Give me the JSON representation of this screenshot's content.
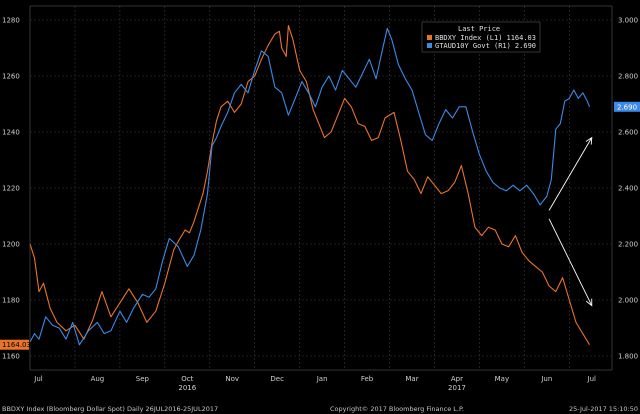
{
  "chart_data": {
    "type": "line",
    "legend": {
      "title": "Last Price",
      "placement": "top-right",
      "entries": [
        {
          "label": "BBDXY Index  (L1)",
          "value": "1164.03",
          "color": "#e8742a"
        },
        {
          "label": "GTAUD10Y Govt  (R1)",
          "value": "2.690",
          "color": "#3c8ae6"
        }
      ]
    },
    "y_left": {
      "ticks": [
        "1280",
        "1260",
        "1240",
        "1220",
        "1200",
        "1180",
        "1160"
      ],
      "range": [
        1155,
        1285
      ],
      "last_label": "1164.03",
      "last_value": 1164.03,
      "last_color": "#e8742a"
    },
    "y_right": {
      "ticks": [
        "3.000",
        "2.800",
        "2.600",
        "2.400",
        "2.200",
        "2.000",
        "1.800"
      ],
      "range": [
        1.75,
        3.05
      ],
      "last_label": "2.690",
      "last_value": 2.69,
      "last_color": "#3c8ae6"
    },
    "x_labels": [
      {
        "label": "Jul",
        "m": 0.1
      },
      {
        "label": "Aug",
        "m": 1
      },
      {
        "label": "Sep",
        "m": 2
      },
      {
        "label": "Oct",
        "m": 3
      },
      {
        "label": "Nov",
        "m": 4
      },
      {
        "label": "Dec",
        "m": 5
      },
      {
        "label": "Jan",
        "m": 6
      },
      {
        "label": "Feb",
        "m": 7
      },
      {
        "label": "Mar",
        "m": 8
      },
      {
        "label": "Apr",
        "m": 9
      },
      {
        "label": "May",
        "m": 10
      },
      {
        "label": "Jun",
        "m": 11
      },
      {
        "label": "Jul",
        "m": 12
      }
    ],
    "x_year_labels": [
      {
        "label": "2016",
        "m": 3
      },
      {
        "label": "2017",
        "m": 9
      }
    ],
    "x_range_months": [
      0,
      12.95
    ],
    "grid": true,
    "series": [
      {
        "name": "BBDXY Index",
        "axis": "left",
        "color": "#e8742a",
        "points": [
          [
            0,
            1200
          ],
          [
            0.1,
            1195
          ],
          [
            0.2,
            1183
          ],
          [
            0.3,
            1186
          ],
          [
            0.45,
            1177
          ],
          [
            0.6,
            1172
          ],
          [
            0.8,
            1169
          ],
          [
            1,
            1171
          ],
          [
            1.2,
            1166
          ],
          [
            1.4,
            1173
          ],
          [
            1.6,
            1183
          ],
          [
            1.8,
            1174
          ],
          [
            2,
            1179
          ],
          [
            2.2,
            1184
          ],
          [
            2.4,
            1179
          ],
          [
            2.6,
            1172
          ],
          [
            2.8,
            1176
          ],
          [
            3,
            1186
          ],
          [
            3.1,
            1192
          ],
          [
            3.2,
            1198
          ],
          [
            3.3,
            1201
          ],
          [
            3.45,
            1205
          ],
          [
            3.55,
            1204
          ],
          [
            3.65,
            1208
          ],
          [
            3.75,
            1213
          ],
          [
            3.85,
            1218
          ],
          [
            3.95,
            1226
          ],
          [
            4.05,
            1236
          ],
          [
            4.15,
            1244
          ],
          [
            4.25,
            1249
          ],
          [
            4.4,
            1251
          ],
          [
            4.55,
            1247
          ],
          [
            4.7,
            1250
          ],
          [
            4.85,
            1258
          ],
          [
            5,
            1260
          ],
          [
            5.15,
            1266
          ],
          [
            5.3,
            1271
          ],
          [
            5.45,
            1275
          ],
          [
            5.55,
            1276
          ],
          [
            5.6,
            1270
          ],
          [
            5.7,
            1267
          ],
          [
            5.75,
            1278
          ],
          [
            5.85,
            1273
          ],
          [
            6,
            1262
          ],
          [
            6.15,
            1258
          ],
          [
            6.3,
            1248
          ],
          [
            6.45,
            1242
          ],
          [
            6.55,
            1238
          ],
          [
            6.7,
            1240
          ],
          [
            6.85,
            1246
          ],
          [
            7,
            1252
          ],
          [
            7.15,
            1249
          ],
          [
            7.3,
            1243
          ],
          [
            7.45,
            1242
          ],
          [
            7.6,
            1237
          ],
          [
            7.75,
            1238
          ],
          [
            7.9,
            1245
          ],
          [
            8.1,
            1247
          ],
          [
            8.25,
            1237
          ],
          [
            8.4,
            1226
          ],
          [
            8.55,
            1223
          ],
          [
            8.7,
            1218
          ],
          [
            8.85,
            1224
          ],
          [
            9,
            1221
          ],
          [
            9.15,
            1218
          ],
          [
            9.3,
            1219
          ],
          [
            9.45,
            1222
          ],
          [
            9.6,
            1228
          ],
          [
            9.75,
            1218
          ],
          [
            9.9,
            1206
          ],
          [
            10.05,
            1203
          ],
          [
            10.2,
            1206
          ],
          [
            10.35,
            1205
          ],
          [
            10.5,
            1200
          ],
          [
            10.65,
            1199
          ],
          [
            10.8,
            1203
          ],
          [
            10.95,
            1197
          ],
          [
            11.1,
            1194
          ],
          [
            11.25,
            1192
          ],
          [
            11.4,
            1190
          ],
          [
            11.55,
            1185
          ],
          [
            11.7,
            1183
          ],
          [
            11.85,
            1188
          ],
          [
            12,
            1180
          ],
          [
            12.15,
            1172
          ],
          [
            12.3,
            1168
          ],
          [
            12.45,
            1164.03
          ]
        ]
      },
      {
        "name": "GTAUD10Y Govt",
        "axis": "right",
        "color": "#3c8ae6",
        "points": [
          [
            0,
            1.85
          ],
          [
            0.1,
            1.88
          ],
          [
            0.2,
            1.86
          ],
          [
            0.35,
            1.94
          ],
          [
            0.5,
            1.91
          ],
          [
            0.65,
            1.9
          ],
          [
            0.8,
            1.86
          ],
          [
            0.95,
            1.92
          ],
          [
            1.1,
            1.84
          ],
          [
            1.3,
            1.89
          ],
          [
            1.5,
            1.92
          ],
          [
            1.65,
            1.88
          ],
          [
            1.8,
            1.89
          ],
          [
            2,
            1.96
          ],
          [
            2.15,
            1.92
          ],
          [
            2.3,
            1.97
          ],
          [
            2.5,
            2.02
          ],
          [
            2.65,
            2.01
          ],
          [
            2.8,
            2.04
          ],
          [
            2.95,
            2.14
          ],
          [
            3.1,
            2.22
          ],
          [
            3.3,
            2.19
          ],
          [
            3.5,
            2.12
          ],
          [
            3.65,
            2.16
          ],
          [
            3.8,
            2.25
          ],
          [
            3.95,
            2.38
          ],
          [
            4.05,
            2.55
          ],
          [
            4.15,
            2.58
          ],
          [
            4.25,
            2.62
          ],
          [
            4.4,
            2.67
          ],
          [
            4.55,
            2.74
          ],
          [
            4.7,
            2.77
          ],
          [
            4.85,
            2.74
          ],
          [
            5,
            2.82
          ],
          [
            5.15,
            2.89
          ],
          [
            5.3,
            2.87
          ],
          [
            5.45,
            2.76
          ],
          [
            5.6,
            2.74
          ],
          [
            5.75,
            2.66
          ],
          [
            5.9,
            2.72
          ],
          [
            6.05,
            2.78
          ],
          [
            6.2,
            2.74
          ],
          [
            6.35,
            2.69
          ],
          [
            6.5,
            2.76
          ],
          [
            6.65,
            2.8
          ],
          [
            6.8,
            2.75
          ],
          [
            6.95,
            2.82
          ],
          [
            7.1,
            2.79
          ],
          [
            7.25,
            2.76
          ],
          [
            7.4,
            2.81
          ],
          [
            7.55,
            2.86
          ],
          [
            7.7,
            2.79
          ],
          [
            7.85,
            2.9
          ],
          [
            7.95,
            2.97
          ],
          [
            8.05,
            2.93
          ],
          [
            8.2,
            2.84
          ],
          [
            8.35,
            2.79
          ],
          [
            8.5,
            2.75
          ],
          [
            8.65,
            2.67
          ],
          [
            8.8,
            2.59
          ],
          [
            8.95,
            2.57
          ],
          [
            9.1,
            2.63
          ],
          [
            9.25,
            2.68
          ],
          [
            9.4,
            2.65
          ],
          [
            9.55,
            2.69
          ],
          [
            9.7,
            2.69
          ],
          [
            9.85,
            2.6
          ],
          [
            10,
            2.52
          ],
          [
            10.15,
            2.46
          ],
          [
            10.3,
            2.42
          ],
          [
            10.45,
            2.4
          ],
          [
            10.6,
            2.39
          ],
          [
            10.75,
            2.41
          ],
          [
            10.9,
            2.39
          ],
          [
            11.05,
            2.41
          ],
          [
            11.2,
            2.38
          ],
          [
            11.35,
            2.34
          ],
          [
            11.5,
            2.37
          ],
          [
            11.6,
            2.43
          ],
          [
            11.7,
            2.61
          ],
          [
            11.8,
            2.63
          ],
          [
            11.9,
            2.71
          ],
          [
            12,
            2.72
          ],
          [
            12.1,
            2.75
          ],
          [
            12.2,
            2.72
          ],
          [
            12.3,
            2.74
          ],
          [
            12.4,
            2.71
          ],
          [
            12.45,
            2.69
          ]
        ]
      }
    ],
    "annotations": [
      {
        "type": "arrow",
        "from": [
          11.55,
          1212
        ],
        "to": [
          12.5,
          1238
        ],
        "axis": "left",
        "color": "#ffffff"
      },
      {
        "type": "arrow",
        "from": [
          11.55,
          1209
        ],
        "to": [
          12.5,
          1178
        ],
        "axis": "left",
        "color": "#ffffff"
      }
    ],
    "footer": {
      "left": "BBDXY Index (Bloomberg Dollar Spot)  Daily 26JUL2016-25JUL2017",
      "center": "Copyright© 2017 Bloomberg Finance L.P.",
      "right": "25-Jul-2017 15:10:50"
    }
  }
}
